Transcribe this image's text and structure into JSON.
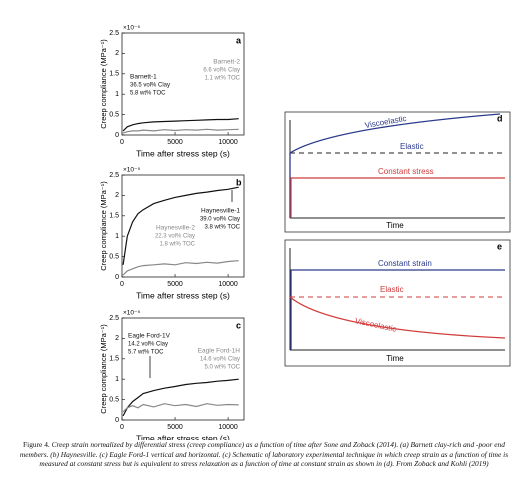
{
  "chart_data": [
    {
      "type": "line",
      "letter": "a",
      "y_multiplier": "×10⁻⁵",
      "ylabel": "Creep compliance (MPa⁻¹)",
      "xlabel": "Time after stress step (s)",
      "x": [
        100,
        500,
        1000,
        1500,
        2000,
        3000,
        4000,
        5000,
        6000,
        7000,
        8000,
        9000,
        10000,
        11000
      ],
      "xlim": [
        0,
        11500
      ],
      "xticks": [
        0,
        5000,
        10000
      ],
      "ylim": [
        0,
        2.5
      ],
      "yticks": [
        0,
        0.5,
        1,
        1.5,
        2,
        2.5
      ],
      "series": [
        {
          "name": "Barnett-1",
          "color": "#111111",
          "details": [
            "36.5 vol% Clay",
            "5.8 wt% TOC"
          ],
          "values": [
            0.1,
            0.2,
            0.25,
            0.28,
            0.3,
            0.32,
            0.33,
            0.34,
            0.35,
            0.36,
            0.37,
            0.38,
            0.38,
            0.4
          ]
        },
        {
          "name": "Barnett-2",
          "color": "#888888",
          "details": [
            "6.6 vol% Clay",
            "1.1 wt% TOC"
          ],
          "values": [
            0.05,
            0.08,
            0.1,
            0.1,
            0.12,
            0.1,
            0.13,
            0.11,
            0.13,
            0.12,
            0.14,
            0.12,
            0.13,
            0.14
          ]
        }
      ]
    },
    {
      "type": "line",
      "letter": "b",
      "y_multiplier": "×10⁻⁵",
      "ylabel": "Creep compliance (MPa⁻¹)",
      "xlabel": "Time after stress step (s)",
      "x": [
        100,
        500,
        1000,
        1500,
        2000,
        3000,
        4000,
        5000,
        6000,
        7000,
        8000,
        9000,
        10000,
        11000
      ],
      "xlim": [
        0,
        11500
      ],
      "xticks": [
        0,
        5000,
        10000
      ],
      "ylim": [
        0,
        2.5
      ],
      "yticks": [
        0,
        0.5,
        1,
        1.5,
        2,
        2.5
      ],
      "series": [
        {
          "name": "Haynesville-1",
          "color": "#111111",
          "details": [
            "39.0 vol% Clay",
            "3.8 wt% TOC"
          ],
          "values": [
            0.3,
            1.0,
            1.35,
            1.55,
            1.65,
            1.8,
            1.88,
            1.95,
            2.0,
            2.05,
            2.08,
            2.12,
            2.15,
            2.2
          ]
        },
        {
          "name": "Haynesville-2",
          "color": "#888888",
          "details": [
            "22.3 vol% Clay",
            "1.8 wt% TOC"
          ],
          "values": [
            0.05,
            0.15,
            0.2,
            0.25,
            0.28,
            0.3,
            0.32,
            0.3,
            0.35,
            0.33,
            0.36,
            0.34,
            0.38,
            0.4
          ]
        }
      ]
    },
    {
      "type": "line",
      "letter": "c",
      "y_multiplier": "×10⁻⁵",
      "ylabel": "Creep compliance (MPa⁻¹)",
      "xlabel": "Time after stress step (s)",
      "x": [
        100,
        500,
        1000,
        1500,
        2000,
        3000,
        4000,
        5000,
        6000,
        7000,
        8000,
        9000,
        10000,
        11000
      ],
      "xlim": [
        0,
        11500
      ],
      "xticks": [
        0,
        5000,
        10000
      ],
      "ylim": [
        0,
        2.5
      ],
      "yticks": [
        0,
        0.5,
        1,
        1.5,
        2,
        2.5
      ],
      "series": [
        {
          "name": "Eagle Ford-1V",
          "color": "#111111",
          "details": [
            "14.2 vol% Clay",
            "5.7 wt% TOC"
          ],
          "values": [
            0.1,
            0.3,
            0.45,
            0.55,
            0.65,
            0.72,
            0.78,
            0.82,
            0.87,
            0.9,
            0.92,
            0.95,
            0.97,
            1.0
          ]
        },
        {
          "name": "Eagle Ford-1H",
          "color": "#888888",
          "details": [
            "14.6 vol% Clay",
            "5.0 wt% TOC"
          ],
          "values": [
            0.2,
            0.3,
            0.35,
            0.3,
            0.38,
            0.32,
            0.4,
            0.35,
            0.38,
            0.33,
            0.4,
            0.36,
            0.38,
            0.37
          ]
        }
      ]
    }
  ],
  "diagrams": [
    {
      "letter": "d",
      "x_label": "Time",
      "curves": [
        "Viscoelastic",
        "Elastic",
        "Constant stress"
      ]
    },
    {
      "letter": "e",
      "x_label": "Time",
      "curves": [
        "Constant strain",
        "Elastic",
        "Viscoelastic"
      ]
    }
  ],
  "caption": {
    "label": "Figure 4.",
    "text": "Creep strain normalized by differential stress (creep compliance) as a function of time after Sone and Zoback (2014). (a) Barnett clay-rich and -poor end members. (b) Haynesville. (c) Eagle Ford-1 vertical and horizontal. (c) Schematic of laboratory experimental technique in which creep strain as a function of time is measured at constant stress but is equivalent to stress relaxation as a function of time at constant strain as shown in (d). From Zoback and Kohli (2019)"
  }
}
